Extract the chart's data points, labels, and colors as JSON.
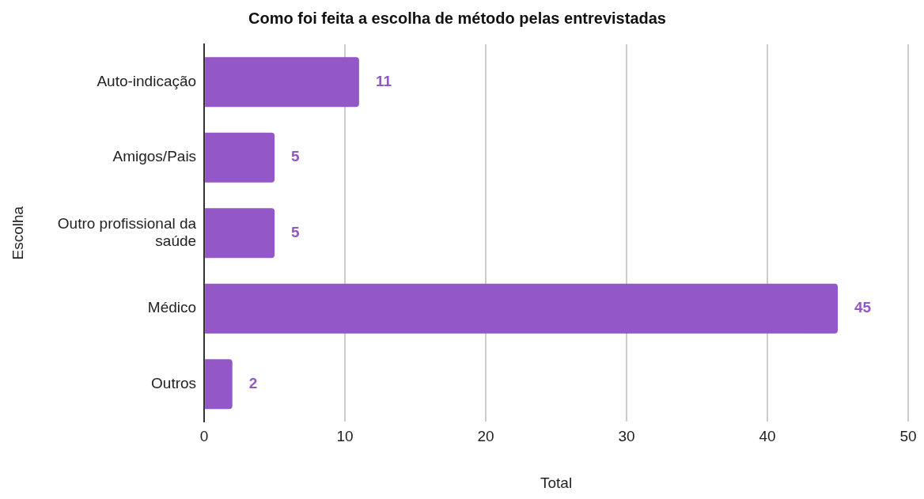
{
  "chart_data": {
    "type": "bar",
    "orientation": "horizontal",
    "title": "Como foi feita a escolha de método pelas entrevistadas",
    "xlabel": "Total",
    "ylabel": "Escolha",
    "categories": [
      "Auto-indicação",
      "Amigos/Pais",
      "Outro profissional da saúde",
      "Médico",
      "Outros"
    ],
    "values": [
      11,
      5,
      5,
      45,
      2
    ],
    "color": "#9457c8",
    "xlim": [
      0,
      50
    ],
    "xticks": [
      0,
      10,
      20,
      30,
      40,
      50
    ],
    "grid": "x",
    "data_labels": true
  }
}
